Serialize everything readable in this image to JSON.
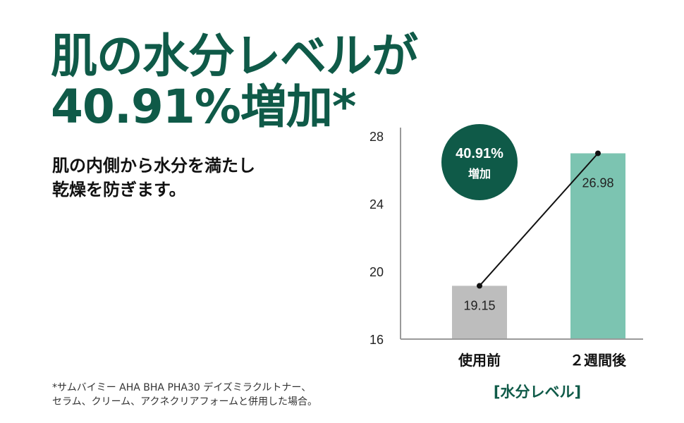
{
  "headline": {
    "line1": "肌の水分レベルが",
    "line2": "40.91%増加*"
  },
  "subtitle": {
    "line1": "肌の内側から水分を満たし",
    "line2": "乾燥を防ぎます。"
  },
  "footnote": {
    "line1": "*サムバイミー AHA BHA PHA30 デイズミラクルトナー、",
    "line2": "セラム、クリーム、アクネクリアフォームと併用した場合。"
  },
  "badge": {
    "line1": "40.91%",
    "line2": "増加"
  },
  "colors": {
    "brand_green": "#0f5a48",
    "bar_before": "#bdbdbd",
    "bar_after": "#7cc4b1"
  },
  "chart_data": {
    "type": "bar",
    "categories": [
      "使用前",
      "２週間後"
    ],
    "values": [
      19.15,
      26.98
    ],
    "value_labels": [
      "19.15",
      "26.98"
    ],
    "xlabel": "[水分レベル]",
    "ylabel": "",
    "ylim": [
      16,
      28
    ],
    "yticks": [
      16,
      20,
      24,
      28
    ],
    "overlay_line": true,
    "grid": false
  }
}
